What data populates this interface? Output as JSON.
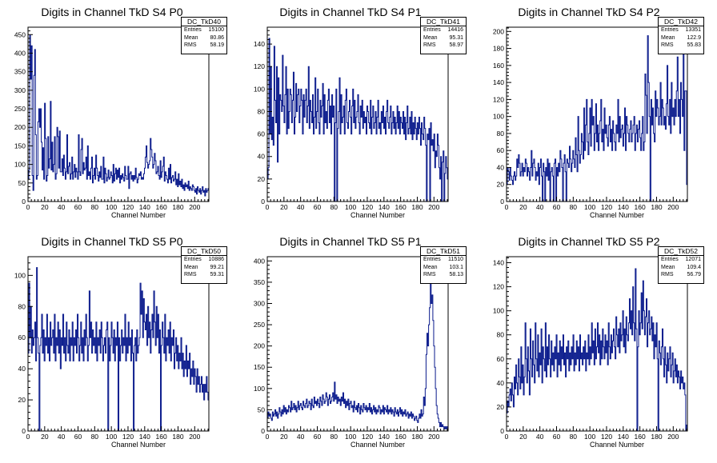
{
  "colors": {
    "histogram_line": "#0a1a8c",
    "frame": "#000000",
    "background": "#ffffff"
  },
  "stats_labels": {
    "entries": "Entries",
    "mean": "Mean",
    "rms": "RMS"
  },
  "chart_data": [
    {
      "type": "histogram",
      "title": "Digits in Channel TkD S4 P0",
      "stats_name": "DC_TkD40",
      "entries": "15100",
      "mean": "80.86",
      "rms": "58.19",
      "xlabel": "Channel Number",
      "ylabel": "",
      "xlim": [
        0,
        217
      ],
      "ylim": [
        0,
        470
      ],
      "xticks": [
        0,
        20,
        40,
        60,
        80,
        100,
        120,
        140,
        160,
        180,
        200
      ],
      "yticks": [
        0,
        50,
        100,
        150,
        200,
        250,
        300,
        350,
        400,
        450
      ],
      "values": [
        60,
        85,
        448,
        330,
        420,
        70,
        30,
        340,
        410,
        180,
        60,
        70,
        215,
        250,
        200,
        250,
        160,
        85,
        145,
        60,
        265,
        170,
        55,
        70,
        175,
        90,
        115,
        270,
        85,
        160,
        80,
        100,
        175,
        60,
        75,
        200,
        175,
        90,
        190,
        80,
        80,
        115,
        70,
        125,
        90,
        60,
        80,
        180,
        75,
        95,
        105,
        60,
        75,
        120,
        60,
        80,
        100,
        65,
        90,
        80,
        60,
        180,
        80,
        70,
        140,
        170,
        75,
        105,
        85,
        90,
        120,
        60,
        150,
        70,
        80,
        60,
        90,
        120,
        50,
        70,
        90,
        60,
        125,
        90,
        70,
        55,
        80,
        65,
        95,
        60,
        60,
        120,
        50,
        90,
        75,
        55,
        65,
        85,
        60,
        65,
        80,
        70,
        50,
        100,
        55,
        75,
        90,
        60,
        85,
        65,
        90,
        50,
        70,
        60,
        75,
        65,
        55,
        95,
        70,
        60,
        60,
        95,
        35,
        75,
        80,
        60,
        70,
        55,
        70,
        60,
        90,
        65,
        50,
        60,
        75,
        70,
        80,
        60,
        65,
        60,
        75,
        90,
        120,
        150,
        105,
        90,
        100,
        110,
        170,
        140,
        120,
        90,
        100,
        130,
        110,
        75,
        80,
        95,
        70,
        60,
        110,
        65,
        80,
        95,
        120,
        55,
        80,
        70,
        60,
        50,
        90,
        60,
        100,
        50,
        65,
        70,
        55,
        60,
        80,
        45,
        60,
        40,
        75,
        45,
        55,
        40,
        60,
        35,
        45,
        30,
        50,
        40,
        45,
        35,
        55,
        30,
        40,
        35,
        30,
        45,
        40,
        30,
        25,
        35,
        20,
        40,
        30,
        25,
        35,
        20,
        30,
        40,
        25,
        30,
        15,
        35,
        25,
        30,
        35
      ],
      "dips": {
        "5": 0
      }
    },
    {
      "type": "histogram",
      "title": "Digits in Channel TkD S4 P1",
      "stats_name": "DC_TkD41",
      "entries": "14416",
      "mean": "95.31",
      "rms": "58.97",
      "xlabel": "Channel Number",
      "ylabel": "",
      "xlim": [
        0,
        217
      ],
      "ylim": [
        0,
        155
      ],
      "xticks": [
        0,
        20,
        40,
        60,
        80,
        100,
        120,
        140,
        160,
        180,
        200
      ],
      "yticks": [
        0,
        20,
        40,
        60,
        80,
        100,
        120,
        140
      ],
      "values": [
        20,
        30,
        145,
        60,
        120,
        55,
        75,
        50,
        138,
        90,
        70,
        120,
        35,
        110,
        60,
        95,
        90,
        80,
        130,
        85,
        70,
        95,
        120,
        60,
        100,
        65,
        80,
        100,
        95,
        70,
        90,
        115,
        60,
        75,
        105,
        80,
        95,
        100,
        70,
        85,
        100,
        90,
        60,
        95,
        75,
        90,
        100,
        70,
        85,
        120,
        65,
        90,
        80,
        70,
        95,
        60,
        75,
        110,
        65,
        80,
        100,
        70,
        60,
        90,
        75,
        85,
        105,
        60,
        95,
        70,
        80,
        65,
        90,
        100,
        70,
        85,
        60,
        95,
        75,
        85,
        0,
        70,
        100,
        0,
        65,
        80,
        110,
        60,
        95,
        70,
        75,
        85,
        60,
        90,
        100,
        70,
        65,
        80,
        90,
        75,
        60,
        85,
        100,
        70,
        90,
        65,
        75,
        80,
        95,
        70,
        60,
        85,
        75,
        90,
        65,
        80,
        70,
        75,
        60,
        85,
        80,
        70,
        65,
        90,
        60,
        75,
        85,
        65,
        70,
        80,
        60,
        75,
        90,
        65,
        70,
        60,
        80,
        70,
        85,
        65,
        75,
        60,
        80,
        90,
        70,
        65,
        75,
        85,
        60,
        70,
        80,
        65,
        75,
        60,
        70,
        85,
        65,
        80,
        60,
        75,
        70,
        65,
        80,
        60,
        75,
        55,
        70,
        85,
        60,
        65,
        75,
        60,
        80,
        55,
        70,
        60,
        75,
        65,
        55,
        70,
        60,
        75,
        65,
        50,
        70,
        60,
        55,
        75,
        65,
        50,
        0,
        60,
        55,
        65,
        0,
        70,
        50,
        55,
        45,
        60,
        30,
        45,
        40,
        60,
        50,
        30,
        20,
        40,
        0,
        35,
        45,
        0,
        25,
        40,
        30,
        20
      ],
      "dips": {}
    },
    {
      "type": "histogram",
      "title": "Digits in Channel TkD S4 P2",
      "stats_name": "DC_TkD42",
      "entries": "13351",
      "mean": "122.9",
      "rms": "55.83",
      "xlabel": "Channel Number",
      "ylabel": "",
      "xlim": [
        0,
        217
      ],
      "ylim": [
        0,
        205
      ],
      "xticks": [
        0,
        20,
        40,
        60,
        80,
        100,
        120,
        140,
        160,
        180,
        200
      ],
      "yticks": [
        0,
        20,
        40,
        60,
        80,
        100,
        120,
        140,
        160,
        180,
        200
      ],
      "values": [
        20,
        40,
        35,
        25,
        40,
        30,
        25,
        20,
        30,
        35,
        25,
        30,
        50,
        40,
        55,
        45,
        30,
        35,
        45,
        30,
        40,
        35,
        50,
        45,
        30,
        40,
        35,
        25,
        40,
        60,
        30,
        45,
        50,
        40,
        25,
        35,
        30,
        45,
        20,
        40,
        50,
        30,
        0,
        45,
        35,
        0,
        40,
        30,
        50,
        25,
        45,
        0,
        35,
        40,
        30,
        0,
        45,
        50,
        0,
        40,
        30,
        45,
        35,
        60,
        50,
        40,
        0,
        45,
        55,
        35,
        0,
        50,
        45,
        40,
        65,
        50,
        35,
        45,
        60,
        50,
        40,
        75,
        55,
        35,
        100,
        60,
        45,
        55,
        80,
        70,
        50,
        110,
        60,
        90,
        120,
        70,
        55,
        80,
        110,
        65,
        120,
        90,
        100,
        60,
        80,
        115,
        70,
        90,
        60,
        80,
        95,
        120,
        70,
        85,
        60,
        110,
        80,
        90,
        75,
        65,
        90,
        100,
        70,
        85,
        60,
        95,
        80,
        70,
        60,
        90,
        80,
        120,
        70,
        100,
        75,
        85,
        90,
        65,
        80,
        110,
        60,
        100,
        90,
        80,
        70,
        85,
        95,
        70,
        80,
        90,
        100,
        60,
        80,
        90,
        70,
        85,
        95,
        75,
        60,
        80,
        100,
        60,
        70,
        150,
        125,
        80,
        195,
        140,
        100,
        0,
        120,
        90,
        110,
        80,
        70,
        130,
        100,
        120,
        110,
        90,
        100,
        140,
        90,
        120,
        110,
        90,
        100,
        85,
        115,
        160,
        100,
        90,
        120,
        80,
        140,
        100,
        110,
        90,
        120,
        100,
        130,
        170,
        100,
        120,
        80,
        140,
        120,
        100,
        190,
        60,
        130,
        130,
        20
      ],
      "dips": {}
    },
    {
      "type": "histogram",
      "title": "Digits in Channel TkD S5 P0",
      "stats_name": "DC_TkD50",
      "entries": "10886",
      "mean": "99.21",
      "rms": "59.31",
      "xlabel": "Channel Number",
      "ylabel": "",
      "xlim": [
        0,
        217
      ],
      "ylim": [
        0,
        112
      ],
      "xticks": [
        0,
        20,
        40,
        60,
        80,
        100,
        120,
        140,
        160,
        180,
        200
      ],
      "yticks": [
        0,
        20,
        40,
        60,
        80,
        100
      ],
      "values": [
        50,
        95,
        60,
        80,
        50,
        65,
        55,
        60,
        70,
        45,
        105,
        60,
        50,
        0,
        55,
        60,
        75,
        50,
        65,
        45,
        60,
        55,
        75,
        50,
        60,
        45,
        70,
        55,
        60,
        65,
        50,
        75,
        45,
        60,
        55,
        70,
        50,
        65,
        40,
        60,
        55,
        75,
        50,
        60,
        45,
        70,
        55,
        50,
        65,
        45,
        60,
        55,
        70,
        45,
        60,
        55,
        65,
        50,
        75,
        60,
        45,
        55,
        70,
        50,
        60,
        45,
        65,
        55,
        75,
        60,
        45,
        55,
        90,
        60,
        70,
        50,
        65,
        55,
        60,
        50,
        70,
        45,
        60,
        55,
        65,
        50,
        70,
        60,
        45,
        55,
        60,
        50,
        65,
        70,
        0,
        60,
        45,
        55,
        70,
        60,
        50,
        65,
        45,
        60,
        55,
        70,
        0,
        60,
        45,
        55,
        65,
        50,
        60,
        55,
        75,
        45,
        60,
        50,
        70,
        55,
        60,
        45,
        65,
        50,
        0,
        55,
        60,
        45,
        65,
        50,
        55,
        60,
        95,
        75,
        90,
        60,
        85,
        70,
        65,
        75,
        55,
        80,
        60,
        70,
        50,
        65,
        75,
        60,
        90,
        70,
        55,
        80,
        60,
        75,
        50,
        65,
        0,
        55,
        70,
        60,
        50,
        75,
        45,
        60,
        55,
        65,
        50,
        70,
        45,
        60,
        55,
        65,
        40,
        50,
        60,
        45,
        55,
        40,
        50,
        45,
        60,
        40,
        50,
        35,
        45,
        40,
        55,
        35,
        45,
        40,
        50,
        30,
        40,
        35,
        45,
        30,
        40,
        35,
        25,
        40,
        30,
        35,
        25,
        30,
        35,
        25,
        30,
        20,
        30,
        25,
        35,
        25,
        20
      ],
      "dips": {}
    },
    {
      "type": "histogram",
      "title": "Digits in Channel TkD S5 P1",
      "stats_name": "DC_TkD51",
      "entries": "11510",
      "mean": "103.1",
      "rms": "58.13",
      "xlabel": "Channel Number",
      "ylabel": "",
      "xlim": [
        0,
        217
      ],
      "ylim": [
        0,
        410
      ],
      "xticks": [
        0,
        20,
        40,
        60,
        80,
        100,
        120,
        140,
        160,
        180,
        200
      ],
      "yticks": [
        0,
        50,
        100,
        150,
        200,
        250,
        300,
        350,
        400
      ],
      "values": [
        30,
        45,
        35,
        40,
        30,
        25,
        45,
        35,
        40,
        50,
        35,
        45,
        30,
        40,
        55,
        45,
        35,
        50,
        40,
        60,
        45,
        55,
        40,
        50,
        45,
        60,
        55,
        45,
        70,
        50,
        55,
        65,
        50,
        60,
        45,
        55,
        70,
        50,
        60,
        65,
        55,
        50,
        70,
        60,
        55,
        65,
        75,
        55,
        60,
        70,
        65,
        50,
        75,
        60,
        55,
        80,
        65,
        70,
        60,
        75,
        65,
        55,
        80,
        70,
        60,
        85,
        75,
        65,
        70,
        90,
        80,
        60,
        75,
        85,
        65,
        70,
        80,
        90,
        70,
        115,
        75,
        85,
        65,
        80,
        70,
        75,
        60,
        80,
        70,
        90,
        65,
        75,
        55,
        70,
        60,
        75,
        50,
        65,
        70,
        55,
        60,
        45,
        70,
        55,
        50,
        60,
        45,
        65,
        55,
        40,
        60,
        50,
        45,
        65,
        55,
        50,
        60,
        45,
        55,
        50,
        65,
        45,
        55,
        40,
        50,
        60,
        45,
        55,
        40,
        50,
        45,
        60,
        55,
        40,
        50,
        45,
        60,
        40,
        55,
        50,
        45,
        60,
        40,
        50,
        45,
        55,
        40,
        50,
        45,
        35,
        55,
        45,
        40,
        50,
        35,
        45,
        55,
        40,
        50,
        35,
        45,
        40,
        50,
        35,
        40,
        45,
        30,
        40,
        35,
        45,
        30,
        40,
        35,
        25,
        30,
        35,
        25,
        20,
        30,
        40,
        30,
        50,
        35,
        40,
        80,
        60,
        100,
        180,
        230,
        200,
        250,
        290,
        350,
        300,
        320,
        260,
        200,
        150,
        100,
        60,
        40,
        30,
        20,
        10,
        20,
        10,
        15,
        10,
        5,
        10,
        5,
        10,
        0
      ],
      "dips": {}
    },
    {
      "type": "histogram",
      "title": "Digits in Channel TkD S5 P2",
      "stats_name": "DC_TkD52",
      "entries": "12071",
      "mean": "109.4",
      "rms": "56.79",
      "xlabel": "Channel Number",
      "ylabel": "",
      "xlim": [
        0,
        217
      ],
      "ylim": [
        0,
        145
      ],
      "xticks": [
        0,
        20,
        40,
        60,
        80,
        100,
        120,
        140,
        160,
        180,
        200
      ],
      "yticks": [
        0,
        20,
        40,
        60,
        80,
        100,
        120,
        140
      ],
      "values": [
        15,
        25,
        20,
        30,
        35,
        25,
        40,
        30,
        20,
        45,
        35,
        55,
        40,
        30,
        60,
        45,
        35,
        70,
        40,
        55,
        30,
        45,
        90,
        60,
        40,
        70,
        50,
        30,
        85,
        60,
        45,
        75,
        55,
        40,
        90,
        60,
        50,
        80,
        45,
        65,
        55,
        85,
        40,
        70,
        60,
        50,
        90,
        45,
        70,
        55,
        80,
        60,
        45,
        75,
        55,
        65,
        50,
        70,
        60,
        80,
        45,
        65,
        55,
        75,
        50,
        70,
        60,
        80,
        55,
        65,
        45,
        70,
        60,
        75,
        50,
        65,
        55,
        70,
        60,
        80,
        50,
        65,
        55,
        75,
        60,
        70,
        50,
        80,
        60,
        65,
        55,
        70,
        60,
        75,
        50,
        65,
        60,
        80,
        55,
        70,
        60,
        90,
        65,
        75,
        55,
        85,
        60,
        70,
        90,
        65,
        80,
        55,
        75,
        60,
        85,
        70,
        60,
        80,
        65,
        75,
        55,
        90,
        70,
        60,
        80,
        65,
        75,
        85,
        70,
        60,
        95,
        80,
        70,
        85,
        65,
        90,
        75,
        80,
        100,
        70,
        85,
        65,
        95,
        80,
        75,
        90,
        110,
        85,
        100,
        80,
        120,
        90,
        75,
        135,
        85,
        0,
        70,
        100,
        80,
        90,
        115,
        85,
        125,
        100,
        80,
        95,
        110,
        70,
        90,
        100,
        80,
        85,
        95,
        75,
        90,
        60,
        80,
        70,
        90,
        60,
        0,
        75,
        65,
        55,
        70,
        85,
        60,
        45,
        70,
        55,
        40,
        65,
        50,
        60,
        70,
        45,
        55,
        65,
        40,
        50,
        60,
        45,
        55,
        40,
        50,
        45,
        35,
        50,
        40,
        45,
        35,
        40,
        30,
        0,
        5
      ],
      "dips": {}
    }
  ]
}
